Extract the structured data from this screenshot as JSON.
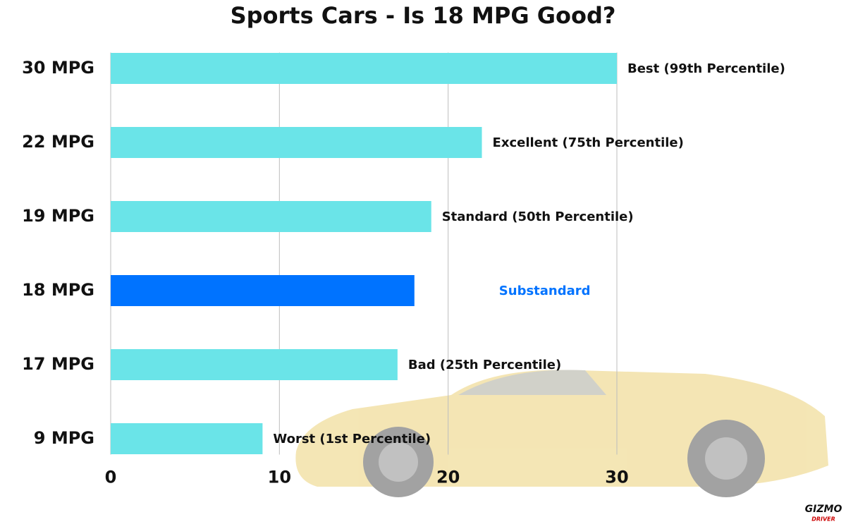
{
  "chart_data": {
    "type": "hbar",
    "title": "Sports Cars - Is 18 MPG Good?",
    "categories": [
      "30 MPG",
      "22 MPG",
      "19 MPG",
      "18 MPG",
      "17 MPG",
      "9 MPG"
    ],
    "values": [
      30,
      22,
      19,
      18,
      17,
      9
    ],
    "color": "#6ae4e8",
    "colors": [
      "#6ae4e8",
      "#6ae4e8",
      "#6ae4e8",
      "#0073ff",
      "#6ae4e8",
      "#6ae4e8"
    ],
    "annotations": [
      "Best (99th Percentile)",
      "Excellent (75th Percentile)",
      "Standard (50th Percentile)",
      "Substandard",
      "Bad (25th Percentile)",
      "Worst (1st Percentile)"
    ],
    "xlim": [
      0,
      30
    ],
    "xticks": [
      0,
      10,
      20,
      30
    ],
    "grid": true
  },
  "logo": {
    "name": "GIZMO",
    "tagline": "DRIVER"
  }
}
